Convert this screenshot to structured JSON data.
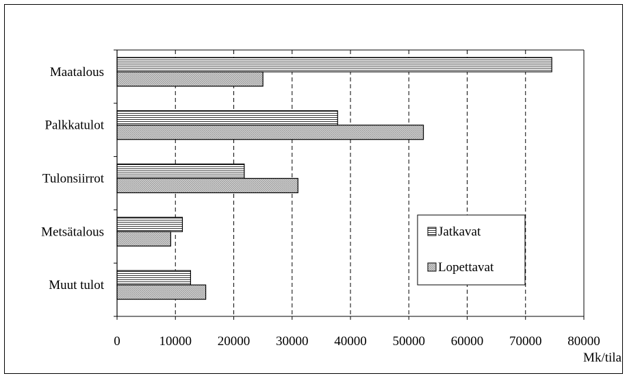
{
  "chart_data": {
    "type": "bar",
    "orientation": "horizontal",
    "categories": [
      "Maatalous",
      "Palkkatulot",
      "Tulonsiirrot",
      "Metsätalous",
      "Muut tulot"
    ],
    "series": [
      {
        "name": "Jatkavat",
        "values": [
          74500,
          37800,
          21800,
          11200,
          12600
        ],
        "pattern": "horizontal-hatch",
        "color": "#ffffff"
      },
      {
        "name": "Lopettavat",
        "values": [
          25000,
          52500,
          31000,
          9200,
          15200
        ],
        "pattern": "fine-hatch-grey",
        "color": "#cfcfcf"
      }
    ],
    "xlim": [
      0,
      80000
    ],
    "xticks": [
      "0",
      "10000",
      "20000",
      "30000",
      "40000",
      "50000",
      "60000",
      "70000",
      "80000"
    ],
    "xlabel": "Mk/tila",
    "grid": "vertical-dashed",
    "legend_position": "right-center"
  }
}
